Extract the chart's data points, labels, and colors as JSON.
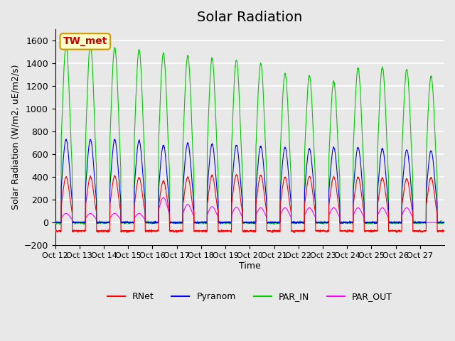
{
  "title": "Solar Radiation",
  "ylabel": "Solar Radiation (W/m2, uE/m2/s)",
  "xlabel": "Time",
  "ylim": [
    -200,
    1700
  ],
  "yticks": [
    -200,
    0,
    200,
    400,
    600,
    800,
    1000,
    1200,
    1400,
    1600
  ],
  "xtick_labels": [
    "Oct 12",
    "Oct 13",
    "Oct 14",
    "Oct 15",
    "Oct 16",
    "Oct 17",
    "Oct 18",
    "Oct 19",
    "Oct 20",
    "Oct 21",
    "Oct 22",
    "Oct 23",
    "Oct 24",
    "Oct 25",
    "Oct 26",
    "Oct 27"
  ],
  "legend_label": "TW_met",
  "series_labels": [
    "RNet",
    "Pyranom",
    "PAR_IN",
    "PAR_OUT"
  ],
  "colors": {
    "RNet": "#ff0000",
    "Pyranom": "#0000ff",
    "PAR_IN": "#00cc00",
    "PAR_OUT": "#ff00ff"
  },
  "background_color": "#e8e8e8",
  "plot_bg_color": "#e8e8e8",
  "grid_color": "#ffffff",
  "title_fontsize": 14,
  "axis_fontsize": 10,
  "legend_box_color": "#ffffcc",
  "legend_box_edge": "#cc9900",
  "num_days": 16,
  "par_in_peaks": [
    1560,
    1565,
    1540,
    1520,
    1490,
    1470,
    1440,
    1430,
    1400,
    1310,
    1290,
    1240,
    1360,
    1370,
    1350,
    1290
  ],
  "pyranom_peaks": [
    730,
    730,
    730,
    720,
    680,
    700,
    690,
    680,
    670,
    660,
    650,
    660,
    660,
    650,
    640,
    630
  ],
  "rnet_peaks": [
    400,
    400,
    410,
    395,
    365,
    400,
    415,
    420,
    415,
    400,
    405,
    400,
    400,
    390,
    385,
    395
  ],
  "par_out_peaks": [
    80,
    80,
    80,
    80,
    220,
    160,
    140,
    135,
    130,
    130,
    130,
    130,
    130,
    130,
    130,
    0
  ],
  "rnet_night": -75,
  "points_per_day": 144
}
